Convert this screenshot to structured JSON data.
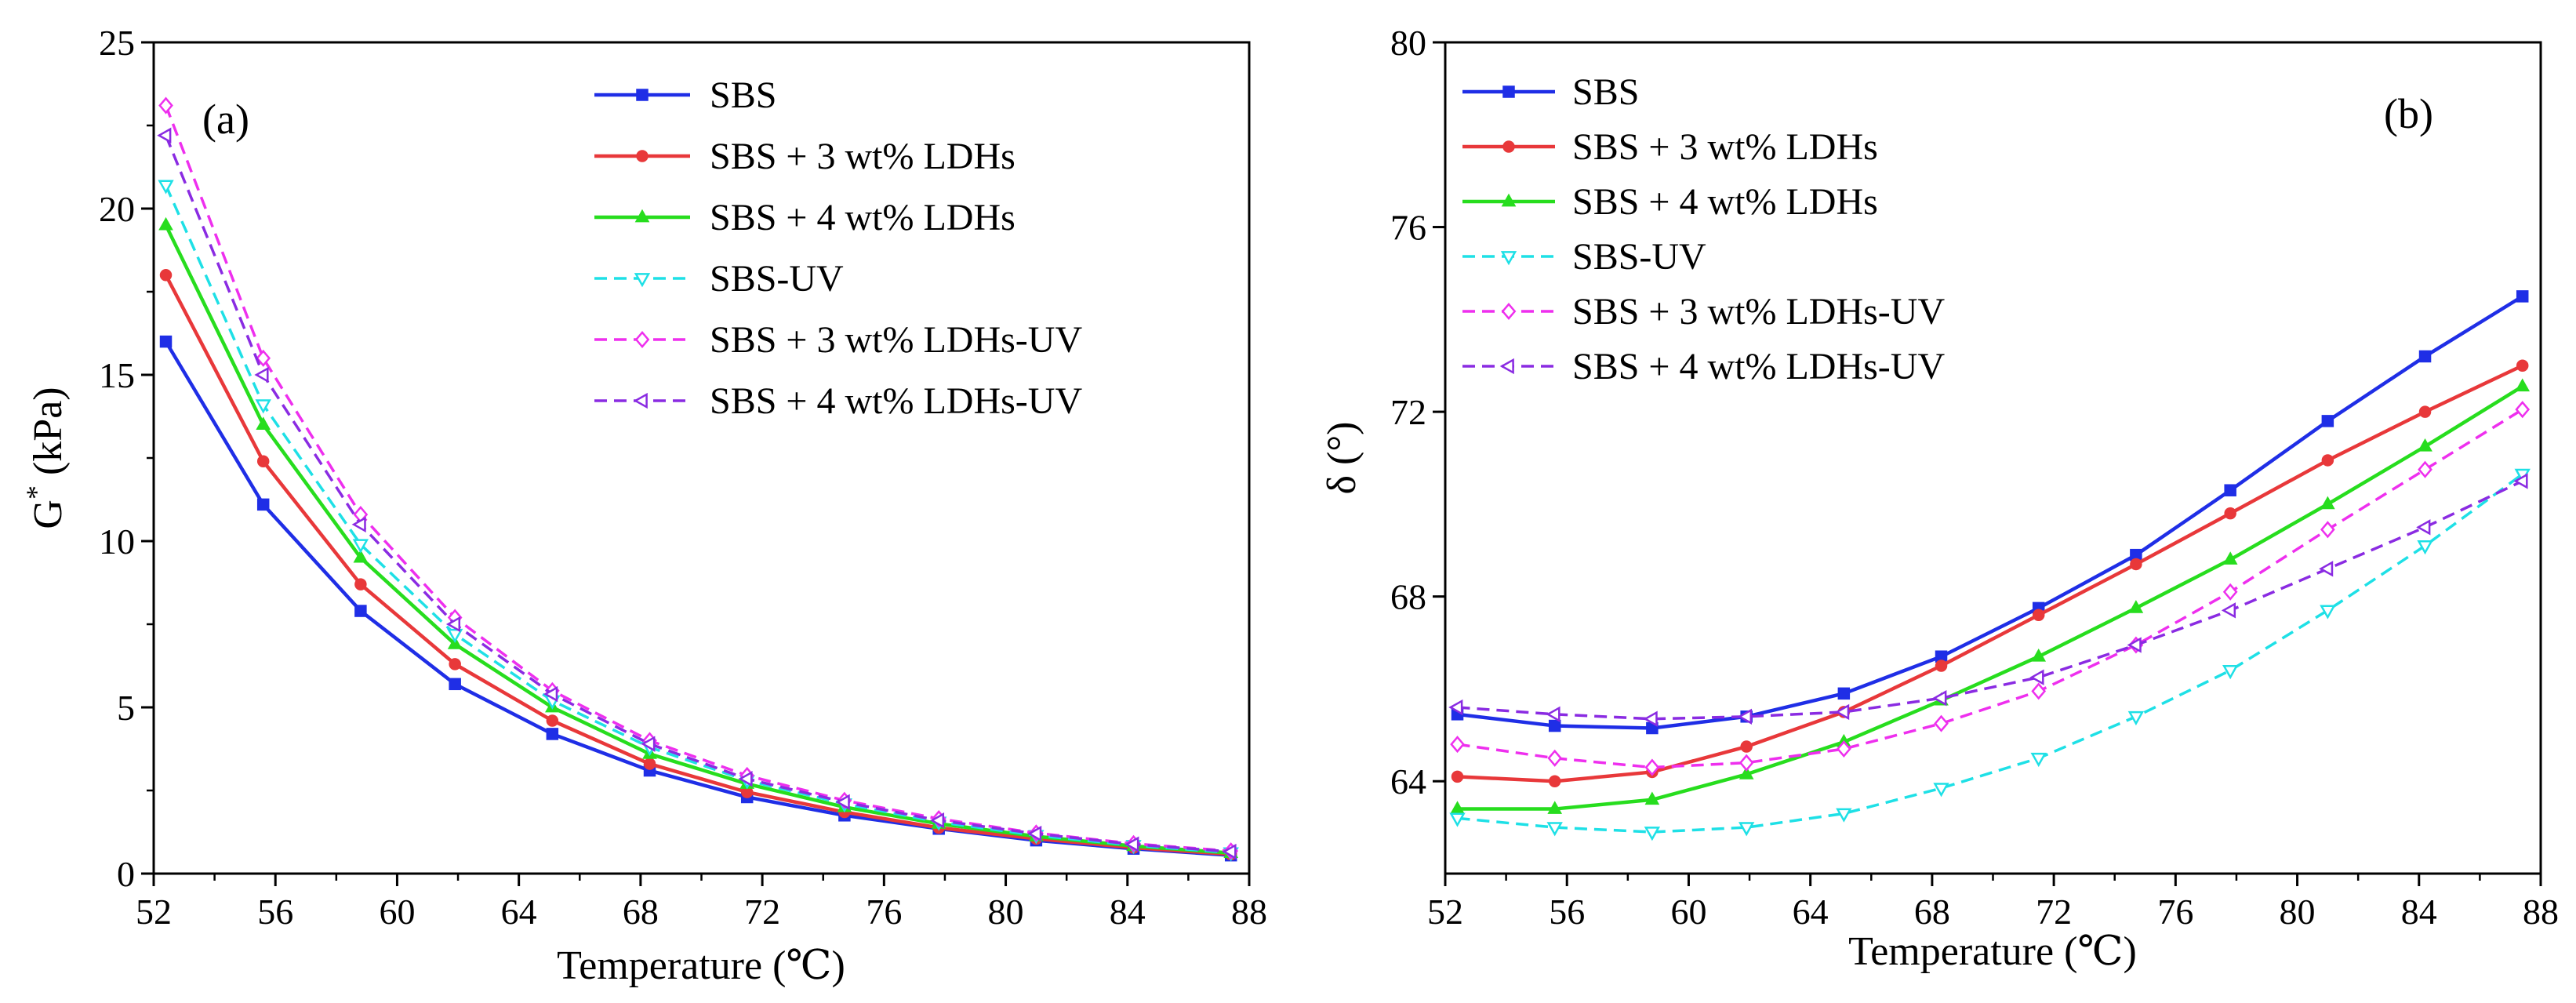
{
  "chart_data": [
    {
      "type": "line",
      "panel_label": "(a)",
      "xlabel": "Temperature (℃)",
      "ylabel_main": "G",
      "ylabel_sup": "*",
      "ylabel_rest": " (kPa)",
      "xlim": [
        52,
        88
      ],
      "ylim": [
        0,
        25
      ],
      "xticks": [
        52,
        56,
        60,
        64,
        68,
        72,
        76,
        80,
        84,
        88
      ],
      "yticks": [
        0,
        5,
        10,
        15,
        20,
        25
      ],
      "x": [
        52.4,
        55.6,
        58.8,
        61.9,
        65.1,
        68.3,
        71.5,
        74.7,
        77.8,
        81.0,
        84.2,
        87.4
      ],
      "legend_position": "top-right",
      "series": [
        {
          "name": "SBS",
          "color": "#1f2ee6",
          "marker": "square",
          "dashed": false,
          "values": [
            16.0,
            11.1,
            7.9,
            5.7,
            4.2,
            3.1,
            2.3,
            1.75,
            1.35,
            1.0,
            0.75,
            0.55
          ]
        },
        {
          "name": "SBS + 3 wt% LDHs",
          "color": "#e8383a",
          "marker": "circle",
          "dashed": false,
          "values": [
            18.0,
            12.4,
            8.7,
            6.3,
            4.6,
            3.3,
            2.45,
            1.85,
            1.38,
            1.05,
            0.78,
            0.58
          ]
        },
        {
          "name": "SBS + 4 wt% LDHs",
          "color": "#27dd1e",
          "marker": "triangle-up",
          "dashed": false,
          "values": [
            19.5,
            13.5,
            9.5,
            6.9,
            5.0,
            3.6,
            2.7,
            2.0,
            1.5,
            1.12,
            0.83,
            0.62
          ]
        },
        {
          "name": "SBS-UV",
          "color": "#1ee0e6",
          "marker": "triangle-down",
          "dashed": true,
          "values": [
            20.7,
            14.1,
            9.9,
            7.2,
            5.2,
            3.8,
            2.8,
            2.1,
            1.55,
            1.15,
            0.85,
            0.63
          ]
        },
        {
          "name": "SBS + 3 wt% LDHs-UV",
          "color": "#ee2fee",
          "marker": "diamond",
          "dashed": true,
          "values": [
            23.1,
            15.5,
            10.8,
            7.7,
            5.5,
            4.0,
            2.95,
            2.2,
            1.65,
            1.22,
            0.9,
            0.68
          ]
        },
        {
          "name": "SBS + 4 wt% LDHs-UV",
          "color": "#8a2be2",
          "marker": "triangle-left",
          "dashed": true,
          "values": [
            22.2,
            15.0,
            10.5,
            7.5,
            5.4,
            3.9,
            2.85,
            2.15,
            1.6,
            1.2,
            0.88,
            0.66
          ]
        }
      ]
    },
    {
      "type": "line",
      "panel_label": "(b)",
      "xlabel": "Temperature (℃)",
      "ylabel_main": "δ (°)",
      "ylabel_sup": "",
      "ylabel_rest": "",
      "xlim": [
        52,
        88
      ],
      "ylim": [
        62,
        80
      ],
      "xticks": [
        52,
        56,
        60,
        64,
        68,
        72,
        76,
        80,
        84,
        88
      ],
      "yticks": [
        64,
        68,
        72,
        76,
        80
      ],
      "x": [
        52.4,
        55.6,
        58.8,
        61.9,
        65.1,
        68.3,
        71.5,
        74.7,
        77.8,
        81.0,
        84.2,
        87.4
      ],
      "legend_position": "top-left",
      "series": [
        {
          "name": "SBS",
          "color": "#1f2ee6",
          "marker": "square",
          "dashed": false,
          "values": [
            65.45,
            65.2,
            65.15,
            65.4,
            65.9,
            66.7,
            67.75,
            68.9,
            70.3,
            71.8,
            73.2,
            74.5
          ]
        },
        {
          "name": "SBS + 3 wt% LDHs",
          "color": "#e8383a",
          "marker": "circle",
          "dashed": false,
          "values": [
            64.1,
            64.0,
            64.2,
            64.75,
            65.5,
            66.5,
            67.6,
            68.7,
            69.8,
            70.95,
            72.0,
            73.0
          ]
        },
        {
          "name": "SBS + 4 wt% LDHs",
          "color": "#27dd1e",
          "marker": "triangle-up",
          "dashed": false,
          "values": [
            63.4,
            63.4,
            63.6,
            64.15,
            64.85,
            65.75,
            66.7,
            67.75,
            68.8,
            70.0,
            71.25,
            72.55
          ]
        },
        {
          "name": "SBS-UV",
          "color": "#1ee0e6",
          "marker": "triangle-down",
          "dashed": true,
          "values": [
            63.2,
            63.0,
            62.9,
            63.0,
            63.3,
            63.85,
            64.5,
            65.4,
            66.4,
            67.7,
            69.1,
            70.65
          ]
        },
        {
          "name": "SBS + 3 wt% LDHs-UV",
          "color": "#ee2fee",
          "marker": "diamond",
          "dashed": true,
          "values": [
            64.8,
            64.5,
            64.3,
            64.4,
            64.7,
            65.25,
            65.95,
            66.95,
            68.1,
            69.45,
            70.75,
            72.05
          ]
        },
        {
          "name": "SBS + 4 wt% LDHs-UV",
          "color": "#8a2be2",
          "marker": "triangle-left",
          "dashed": true,
          "values": [
            65.6,
            65.45,
            65.35,
            65.4,
            65.5,
            65.8,
            66.25,
            66.95,
            67.7,
            68.6,
            69.5,
            70.5
          ]
        }
      ]
    }
  ]
}
